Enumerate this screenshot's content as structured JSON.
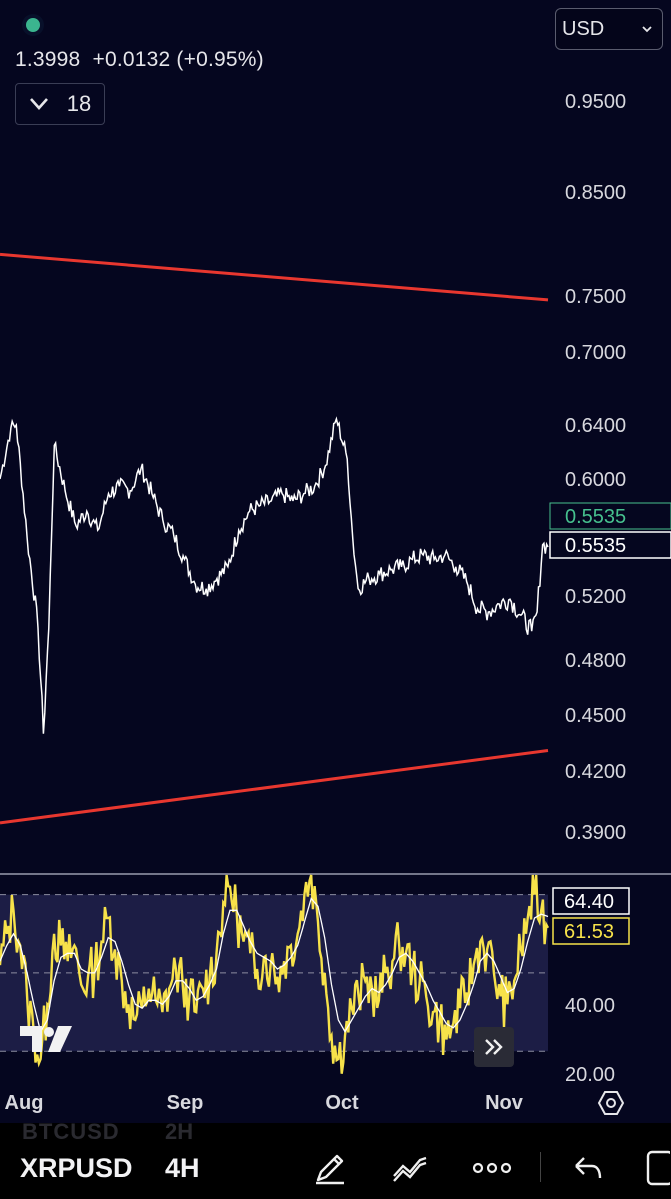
{
  "header": {
    "ohlc_text": "1.3998  +0.0132 (+0.95%)",
    "collapse_count": "18",
    "currency": "USD"
  },
  "toolbar": {
    "ghost_symbol": "BTCUSD",
    "ghost_interval": "2H",
    "symbol": "XRPUSD",
    "interval": "4H"
  },
  "colors": {
    "background": "#05061f",
    "price_line": "#ffffff",
    "trendline": "#e8372f",
    "rsi": "#f7e24a",
    "rsi_ma": "#ffffff",
    "rsi_band": "#1c1d45",
    "current_price_green": "#46c08e"
  },
  "chart_data": [
    {
      "type": "line",
      "series": [
        {
          "name": "XRPUSD",
          "points": [
            [
              "Jul 28",
              0.6
            ],
            [
              "Jul 30",
              0.638
            ],
            [
              "Jul 31",
              0.64
            ],
            [
              "Aug 2",
              0.56
            ],
            [
              "Aug 4",
              0.5
            ],
            [
              "Aug 5",
              0.44
            ],
            [
              "Aug 6",
              0.5
            ],
            [
              "Aug 7",
              0.625
            ],
            [
              "Aug 9",
              0.592
            ],
            [
              "Aug 11",
              0.568
            ],
            [
              "Aug 13",
              0.578
            ],
            [
              "Aug 15",
              0.565
            ],
            [
              "Aug 17",
              0.59
            ],
            [
              "Aug 19",
              0.595
            ],
            [
              "Aug 21",
              0.592
            ],
            [
              "Aug 23",
              0.608
            ],
            [
              "Aug 25",
              0.59
            ],
            [
              "Aug 27",
              0.572
            ],
            [
              "Aug 29",
              0.562
            ],
            [
              "Aug 31",
              0.545
            ],
            [
              "Sep 2",
              0.528
            ],
            [
              "Sep 4",
              0.525
            ],
            [
              "Sep 6",
              0.532
            ],
            [
              "Sep 8",
              0.54
            ],
            [
              "Sep 10",
              0.565
            ],
            [
              "Sep 12",
              0.578
            ],
            [
              "Sep 14",
              0.582
            ],
            [
              "Sep 16",
              0.585
            ],
            [
              "Sep 18",
              0.59
            ],
            [
              "Sep 20",
              0.585
            ],
            [
              "Sep 22",
              0.59
            ],
            [
              "Sep 24",
              0.595
            ],
            [
              "Sep 26",
              0.61
            ],
            [
              "Sep 28",
              0.645
            ],
            [
              "Sep 30",
              0.615
            ],
            [
              "Oct 1",
              0.56
            ],
            [
              "Oct 2",
              0.525
            ],
            [
              "Oct 4",
              0.532
            ],
            [
              "Oct 6",
              0.535
            ],
            [
              "Oct 8",
              0.538
            ],
            [
              "Oct 10",
              0.54
            ],
            [
              "Oct 12",
              0.545
            ],
            [
              "Oct 14",
              0.548
            ],
            [
              "Oct 16",
              0.545
            ],
            [
              "Oct 18",
              0.548
            ],
            [
              "Oct 20",
              0.54
            ],
            [
              "Oct 22",
              0.53
            ],
            [
              "Oct 24",
              0.512
            ],
            [
              "Oct 26",
              0.51
            ],
            [
              "Oct 28",
              0.515
            ],
            [
              "Oct 30",
              0.518
            ],
            [
              "Nov 1",
              0.508
            ],
            [
              "Nov 3",
              0.498
            ],
            [
              "Nov 4",
              0.51
            ],
            [
              "Nov 5",
              0.555
            ],
            [
              "Nov 6",
              0.5535
            ]
          ]
        }
      ],
      "trendlines": [
        {
          "from": [
            "Jul 28",
            0.79
          ],
          "to": [
            "Nov 6",
            0.7465
          ]
        },
        {
          "from": [
            "Jul 28",
            0.3945
          ],
          "to": [
            "Nov 6",
            0.431
          ]
        }
      ],
      "y_ticks": [
        "0.9500",
        "0.8500",
        "0.7500",
        "0.7000",
        "0.6400",
        "0.6000",
        "0.5200",
        "0.4800",
        "0.4500",
        "0.4200",
        "0.3900"
      ],
      "price_labels": [
        "0.5535",
        "0.5535"
      ],
      "x_ticks": [
        "Aug",
        "Sep",
        "Oct",
        "Nov"
      ]
    },
    {
      "type": "line",
      "series": [
        {
          "name": "RSI",
          "values": [
            52,
            60,
            66,
            57,
            44,
            35,
            28,
            42,
            60,
            57,
            53,
            57,
            47,
            49,
            51,
            58,
            64,
            56,
            48,
            42,
            38,
            41,
            46,
            43,
            40,
            46,
            51,
            47,
            44,
            40,
            46,
            49,
            55,
            68,
            72,
            65,
            58,
            55,
            51,
            54,
            52,
            49,
            53,
            57,
            60,
            70,
            75,
            63,
            50,
            34,
            28,
            34,
            41,
            44,
            48,
            46,
            43,
            50,
            53,
            57,
            55,
            51,
            47,
            44,
            40,
            38,
            33,
            37,
            41,
            45,
            52,
            58,
            56,
            50,
            44,
            42,
            48,
            56,
            64,
            70,
            66,
            61.53
          ]
        },
        {
          "name": "RSI MA",
          "values": [
            53,
            57,
            60,
            57,
            50,
            42,
            35,
            38,
            48,
            54,
            55,
            55,
            51,
            50,
            50,
            54,
            59,
            58,
            53,
            47,
            42,
            41,
            43,
            43,
            42,
            44,
            48,
            48,
            46,
            43,
            44,
            47,
            51,
            60,
            66,
            66,
            62,
            58,
            55,
            54,
            53,
            51,
            52,
            54,
            57,
            63,
            69,
            67,
            59,
            47,
            38,
            35,
            38,
            41,
            44,
            46,
            45,
            47,
            50,
            54,
            55,
            53,
            50,
            47,
            43,
            40,
            37,
            36,
            38,
            42,
            47,
            53,
            55,
            53,
            49,
            45,
            46,
            51,
            58,
            64,
            65,
            64.4
          ]
        }
      ],
      "upper_band": 70,
      "lower_band": 30,
      "y_ticks": [
        "40.00",
        "20.00"
      ],
      "value_labels": [
        "64.40",
        "61.53"
      ]
    }
  ]
}
